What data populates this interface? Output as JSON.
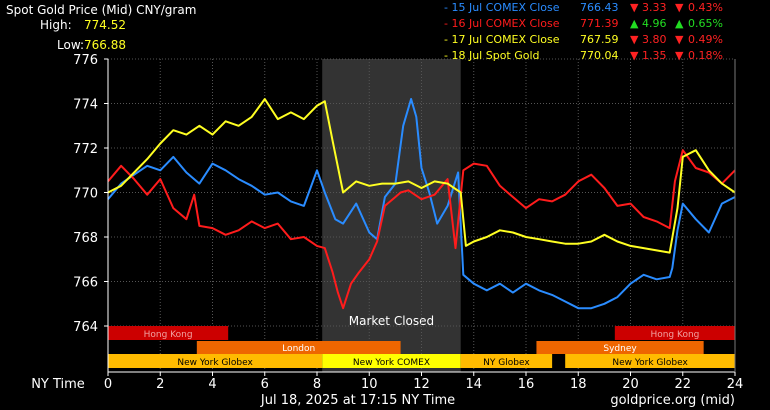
{
  "header": {
    "title": "Spot Gold Price (Mid) CNY/gram",
    "high_label": "High:",
    "high_value": "774.52",
    "low_label": "Low:",
    "low_value": "766.88"
  },
  "legend": [
    {
      "label": "15 Jul COMEX Close",
      "price": "766.43",
      "dir": "down",
      "change": "3.33",
      "pct": "0.43%",
      "color": "#2a8cff"
    },
    {
      "label": "16 Jul COMEX Close",
      "price": "771.39",
      "dir": "up",
      "change": "4.96",
      "pct": "0.65%",
      "color": "#ff1c1c"
    },
    {
      "label": "17 Jul COMEX Close",
      "price": "767.59",
      "dir": "down",
      "change": "3.80",
      "pct": "0.49%",
      "color": "#ffff22"
    },
    {
      "label": "18 Jul Spot Gold",
      "price": "770.04",
      "dir": "down",
      "change": "1.35",
      "pct": "0.18%",
      "color": "#ffff22"
    }
  ],
  "arrows": {
    "up": "▲",
    "down": "▼"
  },
  "colors": {
    "up": "#22dd22",
    "down": "#ff2222",
    "closed_band": "#333333",
    "grid": "#555555"
  },
  "market_closed_label": "Market Closed",
  "sessions": [
    {
      "name": "Hong Kong",
      "start": 0,
      "end": 4.6,
      "row": 0,
      "color": "#cc0000",
      "text": "#f0a0a0"
    },
    {
      "name": "Hong Kong",
      "start": 19.4,
      "end": 24,
      "row": 0,
      "color": "#cc0000",
      "text": "#f0a0a0"
    },
    {
      "name": "London",
      "start": 3.4,
      "end": 11.2,
      "row": 1,
      "color": "#ee6600",
      "text": "#ffffff"
    },
    {
      "name": "Sydney",
      "start": 16.4,
      "end": 22.8,
      "row": 1,
      "color": "#ee6600",
      "text": "#ffffff"
    },
    {
      "name": "New York Globex",
      "start": 0,
      "end": 8.2,
      "row": 2,
      "color": "#ffbb00",
      "text": "#000000"
    },
    {
      "name": "New York COMEX",
      "start": 8.2,
      "end": 13.5,
      "row": 2,
      "color": "#ffff00",
      "text": "#000000"
    },
    {
      "name": "NY Globex",
      "start": 13.5,
      "end": 17.0,
      "row": 2,
      "color": "#ffbb00",
      "text": "#000000"
    },
    {
      "name": "New York Globex",
      "start": 17.5,
      "end": 24,
      "row": 2,
      "color": "#ffbb00",
      "text": "#000000"
    }
  ],
  "footer": {
    "x_title": "NY Time",
    "timestamp": "Jul 18, 2025 at 17:15 NY Time",
    "source": "goldprice.org (mid)"
  },
  "chart_data": {
    "type": "line",
    "title": "Spot Gold Price (Mid) CNY/gram",
    "xlabel": "NY Time",
    "ylabel": "",
    "xlim": [
      0,
      24
    ],
    "ylim": [
      763,
      776
    ],
    "x_ticks": [
      0,
      2,
      4,
      6,
      8,
      10,
      12,
      14,
      16,
      18,
      20,
      22,
      24
    ],
    "y_ticks": [
      764,
      766,
      768,
      770,
      772,
      774,
      776
    ],
    "grid": true,
    "market_closed": [
      8.2,
      13.5
    ],
    "series": [
      {
        "name": "15 Jul COMEX Close",
        "color": "#2a8cff",
        "x": [
          0,
          0.5,
          1,
          1.5,
          2,
          2.5,
          3,
          3.5,
          4,
          4.5,
          5,
          5.5,
          6,
          6.5,
          7,
          7.5,
          8,
          8.3,
          8.7,
          9,
          9.5,
          10,
          10.3,
          10.6,
          11,
          11.3,
          11.6,
          11.8,
          12,
          12.3,
          12.6,
          13,
          13.4,
          13.6,
          14,
          14.5,
          15,
          15.5,
          16,
          16.5,
          17,
          17.5,
          18,
          18.5,
          19,
          19.5,
          20,
          20.5,
          21,
          21.5,
          21.6,
          21.8,
          22,
          22.5,
          23,
          23.5,
          24
        ],
        "y": [
          769.7,
          770.4,
          770.8,
          771.2,
          771.0,
          771.6,
          770.9,
          770.4,
          771.3,
          771.0,
          770.6,
          770.3,
          769.9,
          770.0,
          769.6,
          769.4,
          771.0,
          770.0,
          768.8,
          768.6,
          769.5,
          768.2,
          767.9,
          769.8,
          770.4,
          773.0,
          774.2,
          773.4,
          771.1,
          770.0,
          768.6,
          769.4,
          770.9,
          766.3,
          765.9,
          765.6,
          765.9,
          765.5,
          765.9,
          765.6,
          765.4,
          765.1,
          764.8,
          764.8,
          765.0,
          765.3,
          765.9,
          766.3,
          766.1,
          766.2,
          766.6,
          768.3,
          769.5,
          768.8,
          768.2,
          769.5,
          769.8
        ]
      },
      {
        "name": "16 Jul COMEX Close",
        "color": "#ff1c1c",
        "x": [
          0,
          0.5,
          1,
          1.5,
          2,
          2.5,
          3,
          3.3,
          3.5,
          4,
          4.5,
          5,
          5.5,
          6,
          6.5,
          7,
          7.5,
          8,
          8.3,
          8.6,
          8.8,
          9,
          9.3,
          9.6,
          10,
          10.3,
          10.6,
          11,
          11.2,
          11.5,
          12,
          12.5,
          13,
          13.3,
          13.6,
          14,
          14.5,
          15,
          15.5,
          16,
          16.5,
          17,
          17.5,
          18,
          18.5,
          19,
          19.5,
          20,
          20.5,
          21,
          21.5,
          21.7,
          22,
          22.5,
          23,
          23.5,
          24
        ],
        "y": [
          770.5,
          771.2,
          770.6,
          769.9,
          770.6,
          769.3,
          768.8,
          769.9,
          768.5,
          768.4,
          768.1,
          768.3,
          768.7,
          768.4,
          768.6,
          767.9,
          768.0,
          767.6,
          767.5,
          766.4,
          765.5,
          764.8,
          765.9,
          766.4,
          767.0,
          767.8,
          769.4,
          769.8,
          770.0,
          770.1,
          769.7,
          769.9,
          770.6,
          767.5,
          771.0,
          771.3,
          771.2,
          770.3,
          769.8,
          769.3,
          769.7,
          769.6,
          769.9,
          770.5,
          770.8,
          770.2,
          769.4,
          769.5,
          768.9,
          768.7,
          768.4,
          770.5,
          771.9,
          771.1,
          770.9,
          770.4,
          771.0
        ]
      },
      {
        "name": "17 Jul COMEX Close",
        "color": "#ffff22",
        "x": [
          0,
          0.5,
          1,
          1.5,
          2,
          2.5,
          3,
          3.5,
          4,
          4.5,
          5,
          5.5,
          6,
          6.5,
          7,
          7.5,
          8,
          8.3,
          8.6,
          9,
          9.5,
          10,
          10.5,
          11,
          11.5,
          12,
          12.5,
          13,
          13.5,
          13.7,
          14,
          14.5,
          15,
          15.5,
          16,
          16.5,
          17,
          17.5,
          18,
          18.5,
          19,
          19.5,
          20,
          20.5,
          21,
          21.5,
          21.8,
          22,
          22.5,
          23,
          23.5,
          24
        ],
        "y": [
          770.0,
          770.3,
          770.9,
          771.5,
          772.2,
          772.8,
          772.6,
          773.0,
          772.6,
          773.2,
          773.0,
          773.4,
          774.2,
          773.3,
          773.6,
          773.3,
          773.9,
          774.1,
          772.3,
          770.0,
          770.5,
          770.3,
          770.4,
          770.4,
          770.5,
          770.2,
          770.5,
          770.4,
          770.0,
          767.6,
          767.8,
          768.0,
          768.3,
          768.2,
          768.0,
          767.9,
          767.8,
          767.7,
          767.7,
          767.8,
          768.1,
          767.8,
          767.6,
          767.5,
          767.4,
          767.3,
          769.3,
          771.6,
          771.9,
          771.0,
          770.4,
          770.0
        ]
      }
    ]
  }
}
